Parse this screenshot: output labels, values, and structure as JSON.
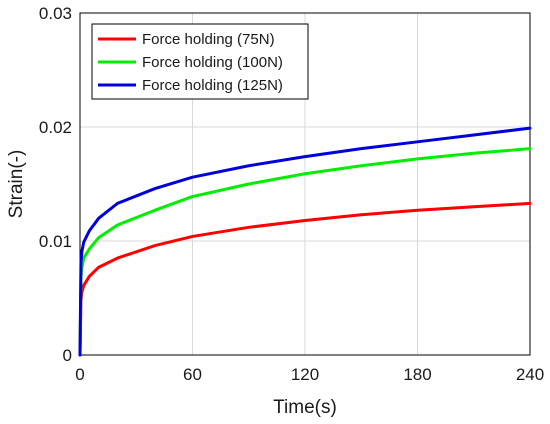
{
  "chart_data": {
    "type": "line",
    "title": "",
    "xlabel": "Time(s)",
    "ylabel": "Strain(-)",
    "xlim": [
      0,
      240
    ],
    "ylim": [
      0,
      0.03
    ],
    "xticks": [
      "0",
      "60",
      "120",
      "180",
      "240"
    ],
    "yticks": [
      "0",
      "0.01",
      "0.02",
      "0.03"
    ],
    "grid": true,
    "legend_position": "top-left",
    "x": [
      0,
      0.5,
      1,
      2,
      5,
      10,
      20,
      40,
      60,
      90,
      120,
      150,
      180,
      210,
      240
    ],
    "series": [
      {
        "name": "Force holding (75N)",
        "color": "#ff0000",
        "values": [
          0,
          0.0048,
          0.0055,
          0.0061,
          0.0069,
          0.0077,
          0.0085,
          0.0096,
          0.0104,
          0.0112,
          0.0118,
          0.0123,
          0.0127,
          0.013,
          0.0133
        ]
      },
      {
        "name": "Force holding (100N)",
        "color": "#00ee00",
        "values": [
          0,
          0.0068,
          0.0077,
          0.0085,
          0.0093,
          0.0103,
          0.0114,
          0.0127,
          0.0139,
          0.015,
          0.0159,
          0.0166,
          0.0172,
          0.0177,
          0.0181
        ]
      },
      {
        "name": "Force holding (125N)",
        "color": "#0000dd",
        "values": [
          0,
          0.0081,
          0.0091,
          0.0099,
          0.0109,
          0.012,
          0.0133,
          0.0146,
          0.0156,
          0.0166,
          0.0174,
          0.0181,
          0.0187,
          0.0193,
          0.0199
        ]
      }
    ]
  }
}
